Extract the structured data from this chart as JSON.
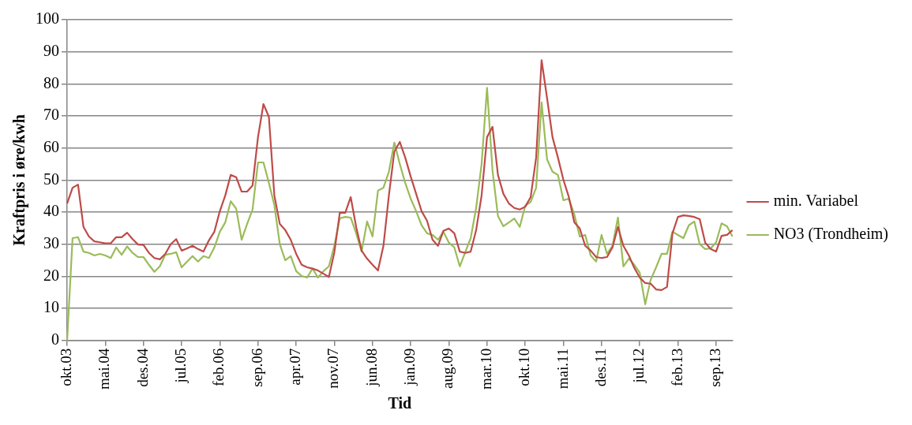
{
  "chart_data": {
    "type": "line",
    "xlabel": "Tid",
    "ylabel": "Kraftpris i øre/kwh",
    "categories": [
      "okt.03",
      null,
      null,
      null,
      null,
      null,
      null,
      "mai.04",
      null,
      null,
      null,
      null,
      null,
      null,
      "des.04",
      null,
      null,
      null,
      null,
      null,
      null,
      "jul.05",
      null,
      null,
      null,
      null,
      null,
      null,
      "feb.06",
      null,
      null,
      null,
      null,
      null,
      null,
      "sep.06",
      null,
      null,
      null,
      null,
      null,
      null,
      "apr.07",
      null,
      null,
      null,
      null,
      null,
      null,
      "nov.07",
      null,
      null,
      null,
      null,
      null,
      null,
      "jun.08",
      null,
      null,
      null,
      null,
      null,
      null,
      "jan.09",
      null,
      null,
      null,
      null,
      null,
      null,
      "aug.09",
      null,
      null,
      null,
      null,
      null,
      null,
      "mar.10",
      null,
      null,
      null,
      null,
      null,
      null,
      "okt.10",
      null,
      null,
      null,
      null,
      null,
      null,
      "mai.11",
      null,
      null,
      null,
      null,
      null,
      null,
      "des.11",
      null,
      null,
      null,
      null,
      null,
      null,
      "jul.12",
      null,
      null,
      null,
      null,
      null,
      null,
      "feb.13",
      null,
      null,
      null,
      null,
      null,
      null,
      "sep.13",
      null,
      null,
      null
    ],
    "series": [
      {
        "name": "min. Variabel",
        "color": "#be4b48",
        "values": [
          42.7,
          47.6,
          48.6,
          35.4,
          32.4,
          30.9,
          30.6,
          30.3,
          30.3,
          32.2,
          32.2,
          33.6,
          31.6,
          29.9,
          29.8,
          27.3,
          25.7,
          25.3,
          27.0,
          30.0,
          31.6,
          28.0,
          28.7,
          29.5,
          28.5,
          27.7,
          31.2,
          33.9,
          40.3,
          45.2,
          51.6,
          50.9,
          46.4,
          46.4,
          48.3,
          63.4,
          73.7,
          69.7,
          45.2,
          36.3,
          34.4,
          31.4,
          27.0,
          23.6,
          22.8,
          22.4,
          21.8,
          20.8,
          19.8,
          27.5,
          39.8,
          39.8,
          44.7,
          35.4,
          28.0,
          25.5,
          23.6,
          21.8,
          29.5,
          45.2,
          58.9,
          61.9,
          57.0,
          51.1,
          45.7,
          40.3,
          37.3,
          31.4,
          29.5,
          34.2,
          34.9,
          33.4,
          27.7,
          27.3,
          27.7,
          34.4,
          45.2,
          63.4,
          66.6,
          51.6,
          45.7,
          42.7,
          41.3,
          40.8,
          41.7,
          44.7,
          57.0,
          87.4,
          75.6,
          63.4,
          57.0,
          50.1,
          44.7,
          36.8,
          34.9,
          29.5,
          28.0,
          26.0,
          25.7,
          26.0,
          29.0,
          35.4,
          29.5,
          26.5,
          22.6,
          19.6,
          17.9,
          17.7,
          15.9,
          15.7,
          16.7,
          33.4,
          38.5,
          39.0,
          38.8,
          38.5,
          37.8,
          30.5,
          28.5,
          27.7,
          32.6,
          32.9,
          34.4
        ]
      },
      {
        "name": "NO3 (Trondheim)",
        "color": "#9bbb59",
        "values": [
          0,
          31.9,
          32.2,
          27.7,
          27.3,
          26.5,
          27.0,
          26.5,
          25.7,
          29.0,
          26.7,
          29.3,
          27.3,
          26.0,
          26.0,
          23.6,
          21.4,
          23.1,
          26.7,
          27.0,
          27.5,
          22.8,
          24.6,
          26.3,
          24.6,
          26.3,
          25.7,
          29.0,
          33.9,
          36.8,
          43.4,
          41.1,
          31.4,
          36.3,
          40.8,
          55.5,
          55.5,
          49.1,
          42.2,
          30.0,
          25.0,
          26.3,
          21.6,
          20.1,
          19.6,
          22.4,
          19.6,
          21.6,
          23.1,
          29.5,
          38.1,
          38.5,
          38.3,
          33.4,
          27.7,
          37.1,
          32.4,
          46.7,
          47.6,
          52.6,
          61.7,
          55.0,
          49.1,
          44.2,
          40.3,
          35.9,
          33.4,
          32.9,
          31.4,
          33.9,
          30.5,
          29.0,
          23.1,
          27.5,
          31.9,
          41.3,
          55.0,
          78.8,
          53.0,
          38.8,
          35.6,
          36.8,
          38.0,
          35.4,
          42.0,
          43.2,
          47.6,
          74.2,
          56.5,
          52.6,
          51.6,
          43.7,
          44.2,
          39.3,
          32.4,
          32.9,
          26.5,
          24.6,
          32.9,
          27.0,
          29.5,
          38.3,
          23.1,
          25.5,
          23.6,
          21.1,
          11.3,
          18.9,
          22.8,
          27.0,
          27.0,
          33.9,
          32.9,
          31.9,
          35.9,
          37.1,
          30.0,
          28.5,
          28.7,
          30.6,
          36.5,
          35.6,
          32.4
        ]
      }
    ],
    "ylim": [
      0,
      100
    ],
    "yticks": [
      0,
      10,
      20,
      30,
      40,
      50,
      60,
      70,
      80,
      90,
      100
    ],
    "grid": "y",
    "legend": "right",
    "marker": "none",
    "line_style": "solid"
  }
}
